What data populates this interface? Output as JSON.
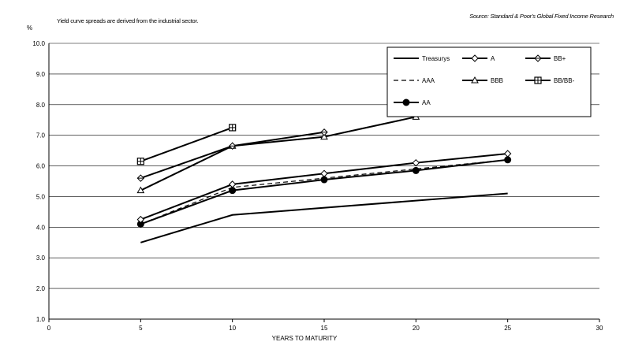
{
  "header": {
    "note": "Yield curve spreads are derived from the industrial sector.",
    "source": "Source: Standard & Poor's Global Fixed Income Research"
  },
  "chart_data": {
    "type": "line",
    "title": "",
    "xlabel": "YEARS TO MATURITY",
    "ylabel": "%",
    "xlim": [
      0,
      30
    ],
    "ylim": [
      1.0,
      10.0
    ],
    "xticks": [
      0,
      5,
      10,
      15,
      20,
      25,
      30
    ],
    "yticks": [
      1.0,
      2.0,
      3.0,
      4.0,
      5.0,
      6.0,
      7.0,
      8.0,
      9.0,
      10.0
    ],
    "legend_position": "top-right",
    "grid": "horizontal",
    "series": [
      {
        "name": "Treasurys",
        "marker": "none",
        "dash": "solid",
        "x": [
          5,
          10,
          25
        ],
        "y": [
          3.5,
          4.4,
          5.1
        ]
      },
      {
        "name": "AAA",
        "marker": "none",
        "dash": "dashed",
        "x": [
          5,
          10,
          25
        ],
        "y": [
          4.1,
          5.3,
          6.2
        ]
      },
      {
        "name": "AA",
        "marker": "filled-circle",
        "dash": "solid",
        "x": [
          5,
          10,
          15,
          20,
          25
        ],
        "y": [
          4.1,
          5.2,
          5.55,
          5.85,
          6.2
        ]
      },
      {
        "name": "A",
        "marker": "open-diamond",
        "dash": "solid",
        "x": [
          5,
          10,
          15,
          20,
          25
        ],
        "y": [
          4.25,
          5.4,
          5.75,
          6.1,
          6.4
        ]
      },
      {
        "name": "BBB",
        "marker": "open-triangle",
        "dash": "solid",
        "x": [
          5,
          10,
          15,
          20
        ],
        "y": [
          5.2,
          6.65,
          6.95,
          7.6
        ]
      },
      {
        "name": "BB+",
        "marker": "open-diamond-cross",
        "dash": "solid",
        "x": [
          5,
          10,
          15
        ],
        "y": [
          5.6,
          6.65,
          7.1
        ]
      },
      {
        "name": "BB/BB-",
        "marker": "open-square-cross",
        "dash": "solid",
        "x": [
          5,
          10
        ],
        "y": [
          6.15,
          7.25
        ]
      }
    ]
  }
}
